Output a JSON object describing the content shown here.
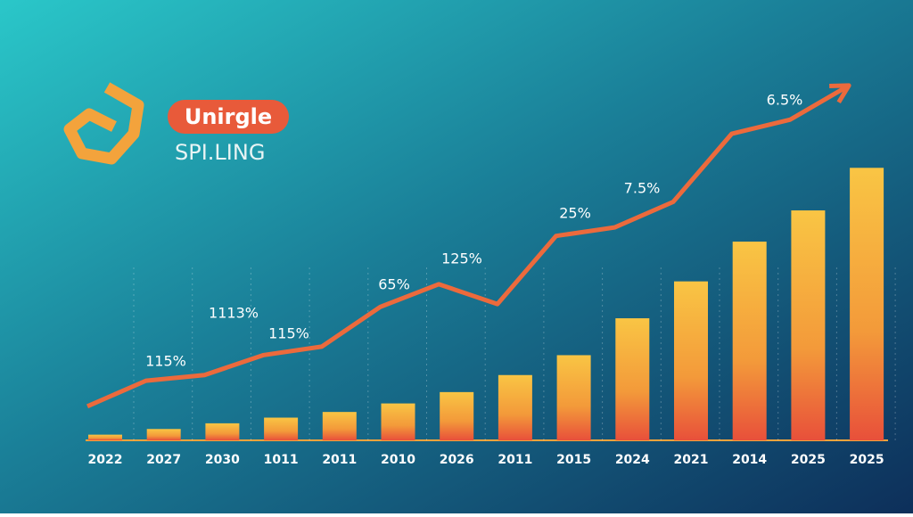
{
  "chart_data": {
    "type": "bar",
    "title": "Unirgle",
    "subtitle": "SPI.LING",
    "categories": [
      "2022",
      "2027",
      "2030",
      "1011",
      "2011",
      "2010",
      "2026",
      "2011",
      "2015",
      "2024",
      "2021",
      "2014",
      "2025",
      "2025"
    ],
    "series": [
      {
        "type": "bar",
        "color": "#f39a3a",
        "values": [
          2,
          4,
          6,
          8,
          10,
          13,
          17,
          23,
          30,
          43,
          56,
          70,
          81,
          96
        ]
      },
      {
        "type": "line",
        "color": "#ec6a3c",
        "values": [
          12,
          21,
          23,
          30,
          33,
          47,
          55,
          48,
          72,
          75,
          84,
          108,
          113,
          125
        ]
      }
    ],
    "annotations": [
      "115%",
      "1113%",
      "115%",
      "65%",
      "125%",
      "25%",
      "7.5%",
      "6.5%"
    ],
    "ylim": [
      0,
      130
    ]
  }
}
